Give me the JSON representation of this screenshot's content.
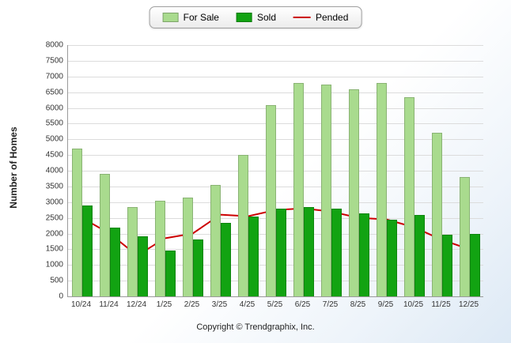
{
  "chart_data": {
    "type": "bar",
    "categories": [
      "10/24",
      "11/24",
      "12/24",
      "1/25",
      "2/25",
      "3/25",
      "4/25",
      "5/25",
      "6/25",
      "7/25",
      "8/25",
      "9/25",
      "10/25",
      "11/25",
      "12/25"
    ],
    "series": [
      {
        "name": "For Sale",
        "type": "bar",
        "color": "#a9db8e",
        "values": [
          4700,
          3900,
          2850,
          3050,
          3150,
          3550,
          4500,
          6100,
          6800,
          6750,
          6600,
          6800,
          6350,
          5200,
          3800
        ]
      },
      {
        "name": "Sold",
        "type": "bar",
        "color": "#12a312",
        "values": [
          2900,
          2200,
          1900,
          1450,
          1800,
          2350,
          2550,
          2800,
          2850,
          2800,
          2650,
          2450,
          2600,
          1950,
          2000
        ]
      },
      {
        "name": "Pended",
        "type": "line",
        "color": "#cc0000",
        "values": [
          2500,
          2000,
          1300,
          1850,
          2000,
          2600,
          2550,
          2750,
          2800,
          2700,
          2500,
          2450,
          2200,
          1800,
          1500
        ]
      }
    ],
    "title": "",
    "xlabel": "",
    "ylabel": "Number of Homes",
    "ylim": [
      0,
      8000
    ],
    "ytick_step": 500,
    "grid": true,
    "legend_position": "top-center"
  },
  "footer": {
    "copyright": "Copyright © Trendgraphix, Inc."
  }
}
